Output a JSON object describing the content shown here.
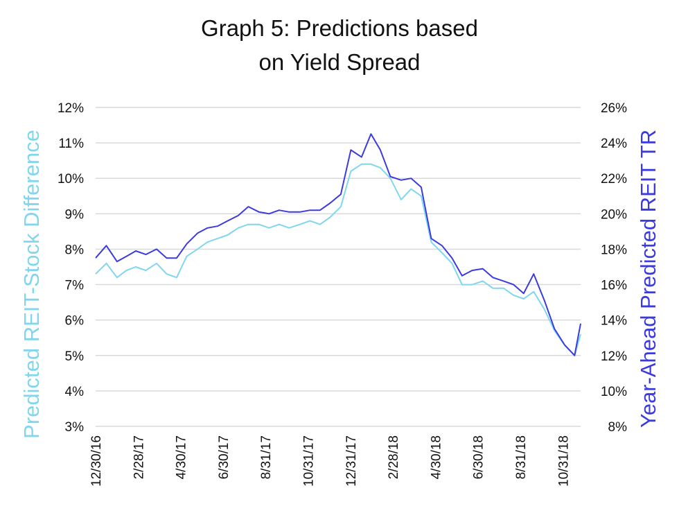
{
  "chart_data": {
    "type": "line",
    "title_lines": [
      "Graph 5: Predictions based",
      "on Yield Spread"
    ],
    "ylabel_left": "Predicted REIT-Stock Difference",
    "ylabel_right": "Year-Ahead Predicted REIT TR",
    "x_tick_labels": [
      "12/30/16",
      "2/28/17",
      "4/30/17",
      "6/30/17",
      "8/31/17",
      "10/31/17",
      "12/31/17",
      "2/28/18",
      "4/30/18",
      "6/30/18",
      "8/31/18",
      "10/31/18"
    ],
    "y_left": {
      "min": 3,
      "max": 12,
      "ticks": [
        "3%",
        "4%",
        "5%",
        "6%",
        "7%",
        "8%",
        "9%",
        "10%",
        "11%",
        "12%"
      ]
    },
    "y_right": {
      "min": 8,
      "max": 26,
      "ticks": [
        "8%",
        "10%",
        "12%",
        "14%",
        "16%",
        "18%",
        "20%",
        "22%",
        "24%",
        "26%"
      ]
    },
    "grid": true,
    "colors": {
      "left_series": "#7fd6ee",
      "right_series": "#3a3ae0",
      "grid": "#d9d9d9"
    },
    "series": [
      {
        "axis": "left",
        "color": "#7fd6ee",
        "x": [
          "12/30/16",
          "1/15/17",
          "1/31/17",
          "2/14/17",
          "2/28/17",
          "3/15/17",
          "3/31/17",
          "4/15/17",
          "4/30/17",
          "5/15/17",
          "5/31/17",
          "6/15/17",
          "6/30/17",
          "7/15/17",
          "7/31/17",
          "8/15/17",
          "8/31/17",
          "9/15/17",
          "9/30/17",
          "10/15/17",
          "10/31/17",
          "11/15/17",
          "11/30/17",
          "12/15/17",
          "12/31/17",
          "1/15/18",
          "1/31/18",
          "2/14/18",
          "2/28/18",
          "3/15/18",
          "3/31/18",
          "4/15/18",
          "4/30/18",
          "5/15/18",
          "5/31/18",
          "6/15/18",
          "6/30/18",
          "7/15/18",
          "7/31/18",
          "8/15/18",
          "8/31/18",
          "9/15/18",
          "9/30/18",
          "10/15/18",
          "10/31/18",
          "11/15/18",
          "11/30/18",
          "12/15/18",
          "12/24/18"
        ],
        "values": [
          7.3,
          7.6,
          7.2,
          7.4,
          7.5,
          7.4,
          7.6,
          7.3,
          7.2,
          7.8,
          8.0,
          8.2,
          8.3,
          8.4,
          8.6,
          8.7,
          8.7,
          8.6,
          8.7,
          8.6,
          8.7,
          8.8,
          8.7,
          8.9,
          9.2,
          10.2,
          10.4,
          10.4,
          10.3,
          10.0,
          9.4,
          9.7,
          9.5,
          8.2,
          7.9,
          7.6,
          7.0,
          7.0,
          7.1,
          6.9,
          6.9,
          6.7,
          6.6,
          6.8,
          6.3,
          5.7,
          5.3,
          5.0,
          5.6
        ]
      },
      {
        "axis": "right",
        "color": "#3a3ae0",
        "x": [
          "12/30/16",
          "1/15/17",
          "1/31/17",
          "2/14/17",
          "2/28/17",
          "3/15/17",
          "3/31/17",
          "4/15/17",
          "4/30/17",
          "5/15/17",
          "5/31/17",
          "6/15/17",
          "6/30/17",
          "7/15/17",
          "7/31/17",
          "8/15/17",
          "8/31/17",
          "9/15/17",
          "9/30/17",
          "10/15/17",
          "10/31/17",
          "11/15/17",
          "11/30/17",
          "12/15/17",
          "12/31/17",
          "1/15/18",
          "1/31/18",
          "2/14/18",
          "2/28/18",
          "3/15/18",
          "3/31/18",
          "4/15/18",
          "4/30/18",
          "5/15/18",
          "5/31/18",
          "6/15/18",
          "6/30/18",
          "7/15/18",
          "7/31/18",
          "8/15/18",
          "8/31/18",
          "9/15/18",
          "9/30/18",
          "10/15/18",
          "10/31/18",
          "11/15/18",
          "11/30/18",
          "12/15/18",
          "12/24/18"
        ],
        "values": [
          17.5,
          18.2,
          17.3,
          17.6,
          17.9,
          17.7,
          18.0,
          17.5,
          17.5,
          18.3,
          18.9,
          19.2,
          19.3,
          19.6,
          19.9,
          20.4,
          20.1,
          20.0,
          20.2,
          20.1,
          20.1,
          20.2,
          20.2,
          20.6,
          21.1,
          23.6,
          23.2,
          24.5,
          23.6,
          22.1,
          21.9,
          22.0,
          21.5,
          18.6,
          18.2,
          17.5,
          16.5,
          16.8,
          16.9,
          16.4,
          16.2,
          16.0,
          15.5,
          16.6,
          15.1,
          13.5,
          12.6,
          12.0,
          13.8
        ]
      }
    ]
  }
}
